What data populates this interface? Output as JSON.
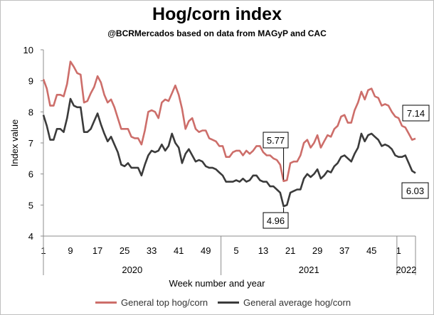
{
  "chart_data": {
    "type": "line",
    "title": "Hog/corn index",
    "subtitle": "@BCRMercados based on data from MAGyP and CAC",
    "ylabel": "Index value",
    "xlabel": "Week number and year",
    "ylim": [
      4,
      10
    ],
    "yticks": [
      "4",
      "5",
      "6",
      "7",
      "8",
      "9",
      "10"
    ],
    "xtick_labels": [
      {
        "i": 0,
        "label": "1"
      },
      {
        "i": 8,
        "label": "9"
      },
      {
        "i": 16,
        "label": "17"
      },
      {
        "i": 24,
        "label": "25"
      },
      {
        "i": 32,
        "label": "33"
      },
      {
        "i": 40,
        "label": "41"
      },
      {
        "i": 48,
        "label": "49"
      },
      {
        "i": 57,
        "label": "5"
      },
      {
        "i": 65,
        "label": "13"
      },
      {
        "i": 73,
        "label": "21"
      },
      {
        "i": 81,
        "label": "29"
      },
      {
        "i": 89,
        "label": "37"
      },
      {
        "i": 97,
        "label": "45"
      },
      {
        "i": 105,
        "label": "1"
      }
    ],
    "year_groups": [
      {
        "label": "2020",
        "start": 0,
        "end": 52
      },
      {
        "label": "2021",
        "start": 53,
        "end": 104
      },
      {
        "label": "2022",
        "start": 105,
        "end": 109
      }
    ],
    "series": [
      {
        "name": "General top hog/corn",
        "color": "#cd6e6a",
        "values": [
          9.05,
          8.75,
          8.2,
          8.2,
          8.55,
          8.55,
          8.5,
          8.9,
          9.62,
          9.45,
          9.25,
          9.2,
          8.3,
          8.35,
          8.6,
          8.8,
          9.15,
          8.95,
          8.55,
          8.3,
          8.4,
          8.15,
          7.8,
          7.45,
          7.45,
          7.45,
          7.2,
          7.15,
          7.15,
          6.95,
          7.4,
          8.0,
          8.05,
          8.0,
          7.8,
          8.3,
          8.4,
          8.35,
          8.6,
          8.85,
          8.55,
          8.1,
          7.45,
          7.7,
          7.8,
          7.45,
          7.35,
          7.4,
          7.4,
          7.15,
          7.1,
          7.05,
          6.9,
          6.9,
          6.55,
          6.55,
          6.7,
          6.75,
          6.75,
          6.6,
          6.75,
          6.65,
          6.75,
          6.9,
          6.9,
          6.7,
          6.6,
          6.6,
          6.5,
          6.45,
          6.3,
          5.77,
          5.8,
          6.35,
          6.4,
          6.4,
          6.6,
          7.0,
          7.1,
          6.85,
          7.0,
          7.25,
          6.85,
          7.05,
          7.25,
          7.2,
          7.45,
          7.55,
          7.85,
          7.9,
          7.65,
          7.65,
          8.05,
          8.3,
          8.65,
          8.4,
          8.7,
          8.75,
          8.5,
          8.45,
          8.2,
          8.25,
          8.2,
          8.0,
          7.85,
          7.8,
          7.55,
          7.5,
          7.3,
          7.1,
          7.14
        ]
      },
      {
        "name": "General average hog/corn",
        "color": "#3b3b3b",
        "values": [
          7.9,
          7.55,
          7.1,
          7.1,
          7.45,
          7.45,
          7.35,
          7.8,
          8.42,
          8.2,
          8.15,
          8.15,
          7.35,
          7.35,
          7.45,
          7.7,
          7.95,
          7.6,
          7.3,
          7.05,
          7.2,
          6.95,
          6.7,
          6.3,
          6.25,
          6.35,
          6.2,
          6.2,
          6.2,
          5.95,
          6.3,
          6.6,
          6.75,
          6.7,
          6.75,
          6.95,
          6.75,
          6.9,
          7.3,
          7.0,
          6.85,
          6.35,
          6.65,
          6.8,
          6.6,
          6.4,
          6.45,
          6.4,
          6.25,
          6.2,
          6.2,
          6.15,
          6.05,
          5.95,
          5.75,
          5.75,
          5.75,
          5.8,
          5.75,
          5.85,
          5.75,
          5.8,
          5.95,
          5.95,
          5.8,
          5.75,
          5.75,
          5.6,
          5.6,
          5.5,
          5.4,
          4.96,
          5.0,
          5.4,
          5.45,
          5.5,
          5.5,
          5.85,
          6.0,
          5.9,
          6.0,
          6.15,
          5.85,
          5.95,
          6.1,
          6.05,
          6.25,
          6.35,
          6.55,
          6.6,
          6.5,
          6.4,
          6.65,
          6.85,
          7.3,
          7.05,
          7.25,
          7.3,
          7.2,
          7.1,
          6.9,
          6.95,
          6.9,
          6.8,
          6.6,
          6.55,
          6.55,
          6.6,
          6.35,
          6.1,
          6.03
        ]
      }
    ],
    "annotations": [
      {
        "text": "5.77",
        "series": 0,
        "i": 71
      },
      {
        "text": "4.96",
        "series": 1,
        "i": 71
      },
      {
        "text": "7.14",
        "series": 0,
        "i": 110
      },
      {
        "text": "6.03",
        "series": 1,
        "i": 110
      }
    ],
    "grid": false,
    "legend_position": "bottom"
  }
}
